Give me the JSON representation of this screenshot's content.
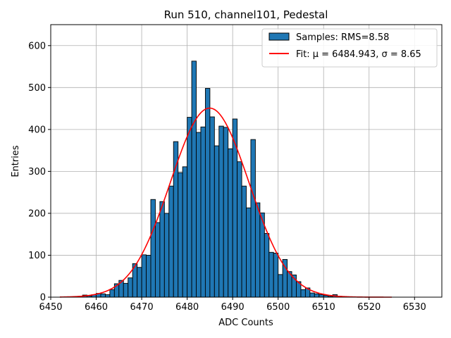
{
  "chart_data": {
    "type": "bar",
    "title": "Run 510, channel101, Pedestal",
    "xlabel": "ADC Counts",
    "ylabel": "Entries",
    "xlim": [
      6450,
      6536
    ],
    "ylim": [
      0,
      650
    ],
    "xticks": [
      6450,
      6460,
      6470,
      6480,
      6490,
      6500,
      6510,
      6520,
      6530
    ],
    "yticks": [
      0,
      100,
      200,
      300,
      400,
      500,
      600
    ],
    "grid": true,
    "legend_position": "top-right",
    "histogram": {
      "name": "Samples: RMS=8.58",
      "color": "#1f77b4",
      "edgecolor": "#000000",
      "bin_width": 1,
      "bins": [
        [
          6457,
          5
        ],
        [
          6458,
          3
        ],
        [
          6459,
          6
        ],
        [
          6460,
          9
        ],
        [
          6461,
          8
        ],
        [
          6462,
          6
        ],
        [
          6463,
          18
        ],
        [
          6464,
          32
        ],
        [
          6465,
          40
        ],
        [
          6466,
          33
        ],
        [
          6467,
          46
        ],
        [
          6468,
          80
        ],
        [
          6469,
          71
        ],
        [
          6470,
          101
        ],
        [
          6471,
          100
        ],
        [
          6472,
          233
        ],
        [
          6473,
          178
        ],
        [
          6474,
          228
        ],
        [
          6475,
          200
        ],
        [
          6476,
          265
        ],
        [
          6477,
          371
        ],
        [
          6478,
          297
        ],
        [
          6479,
          311
        ],
        [
          6480,
          429
        ],
        [
          6481,
          563
        ],
        [
          6482,
          393
        ],
        [
          6483,
          406
        ],
        [
          6484,
          498
        ],
        [
          6485,
          430
        ],
        [
          6486,
          361
        ],
        [
          6487,
          408
        ],
        [
          6488,
          405
        ],
        [
          6489,
          354
        ],
        [
          6490,
          425
        ],
        [
          6491,
          323
        ],
        [
          6492,
          265
        ],
        [
          6493,
          213
        ],
        [
          6494,
          376
        ],
        [
          6495,
          225
        ],
        [
          6496,
          201
        ],
        [
          6497,
          152
        ],
        [
          6498,
          107
        ],
        [
          6499,
          105
        ],
        [
          6500,
          54
        ],
        [
          6501,
          90
        ],
        [
          6502,
          61
        ],
        [
          6503,
          53
        ],
        [
          6504,
          37
        ],
        [
          6505,
          18
        ],
        [
          6506,
          22
        ],
        [
          6507,
          10
        ],
        [
          6508,
          8
        ],
        [
          6509,
          6
        ],
        [
          6510,
          4
        ],
        [
          6511,
          2
        ],
        [
          6512,
          6
        ],
        [
          6513,
          2
        ]
      ]
    },
    "fit": {
      "name": "Fit: μ = 6484.943, σ = 8.65",
      "color": "#ff0000",
      "type": "gaussian",
      "mu": 6484.943,
      "sigma": 8.65,
      "amplitude": 451,
      "x_range": [
        6452,
        6525
      ]
    }
  }
}
